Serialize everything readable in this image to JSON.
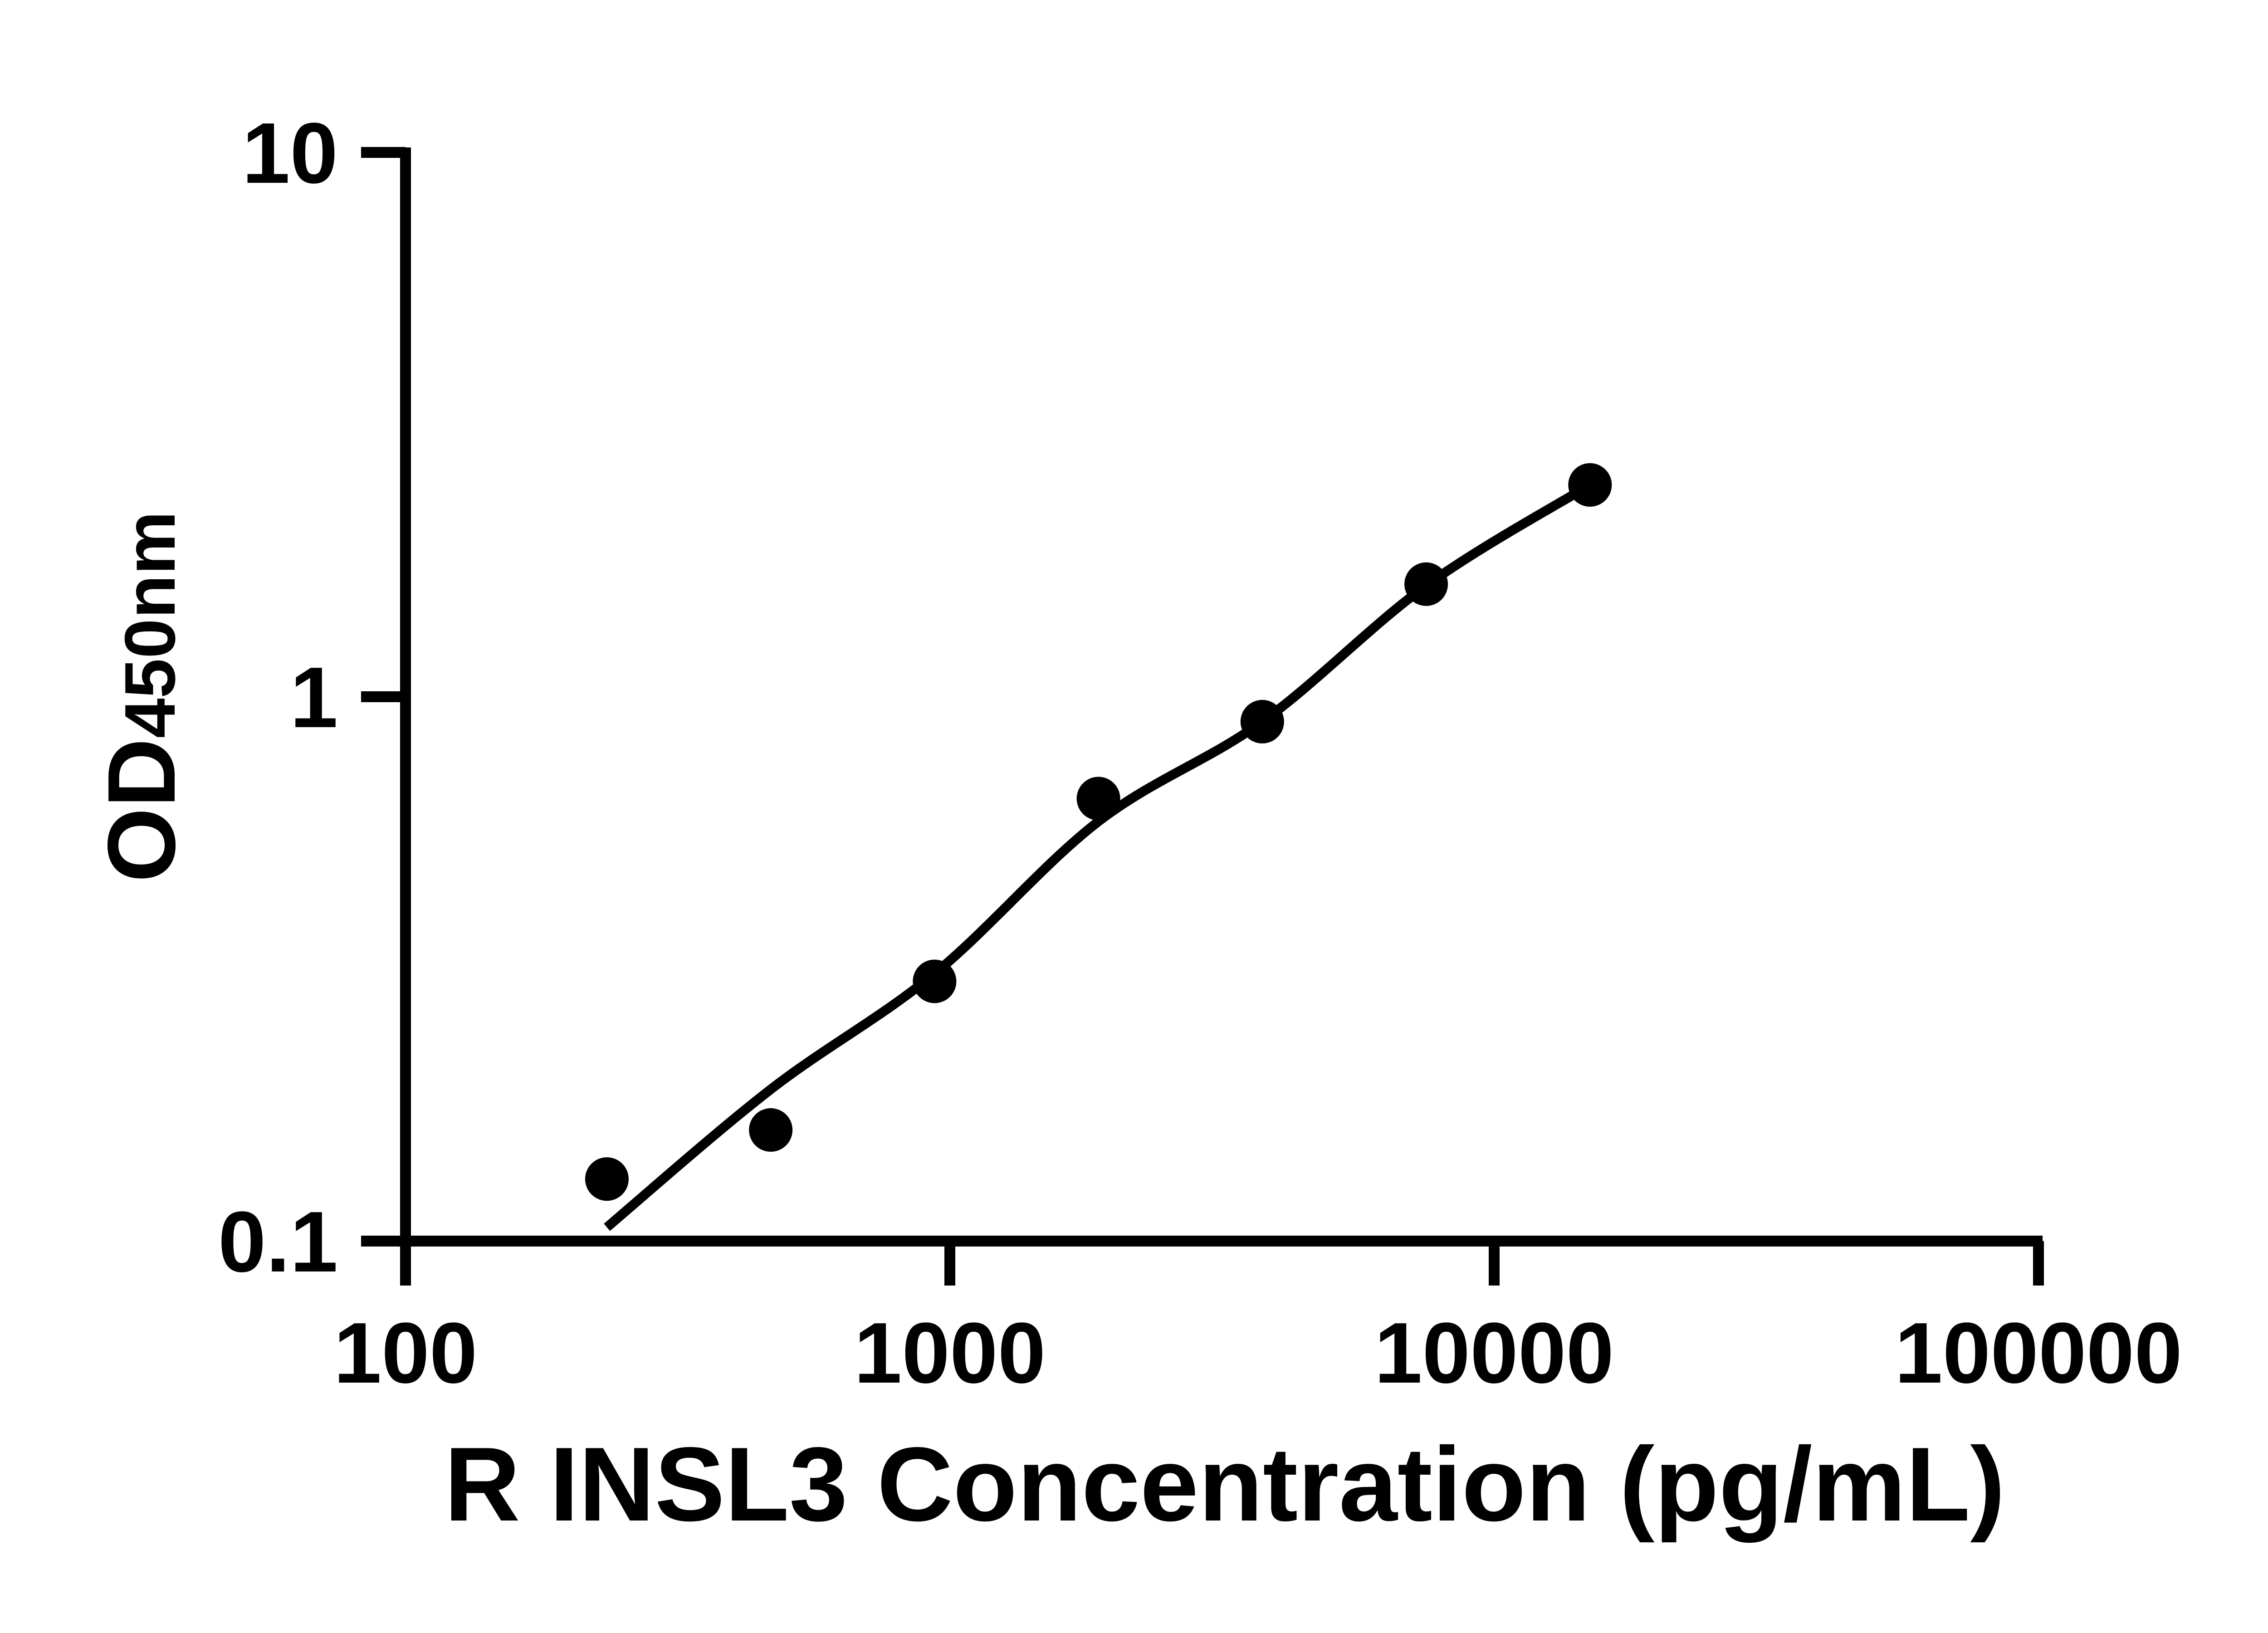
{
  "figure": {
    "background": "#ffffff",
    "ink_color": "#000000"
  },
  "chart_data": {
    "type": "scatter",
    "title": "",
    "xlabel": "R INSL3 Concentration (pg/mL)",
    "ylabel_main": "OD",
    "ylabel_sub": "450nm",
    "x_scale": "log10",
    "y_scale": "log10",
    "xlim": [
      100,
      100000
    ],
    "ylim": [
      0.1,
      10
    ],
    "grid": false,
    "legend": null,
    "x_ticks": [
      {
        "value": 100,
        "label": "100"
      },
      {
        "value": 1000,
        "label": "1000"
      },
      {
        "value": 10000,
        "label": "10000"
      },
      {
        "value": 100000,
        "label": "100000"
      }
    ],
    "y_ticks": [
      {
        "value": 0.1,
        "label": "0.1"
      },
      {
        "value": 1,
        "label": "1"
      },
      {
        "value": 10,
        "label": "10"
      }
    ],
    "series": [
      {
        "name": "standard-points",
        "kind": "scatter",
        "marker": "filled-circle",
        "color": "#000000",
        "points": [
          {
            "x": 234.4,
            "y": 0.13
          },
          {
            "x": 468.8,
            "y": 0.16
          },
          {
            "x": 937.5,
            "y": 0.3
          },
          {
            "x": 1875,
            "y": 0.65
          },
          {
            "x": 3750,
            "y": 0.9
          },
          {
            "x": 7500,
            "y": 1.61
          },
          {
            "x": 15000,
            "y": 2.45
          }
        ]
      },
      {
        "name": "fit-curve",
        "kind": "line",
        "color": "#000000",
        "points": [
          {
            "x": 234.4,
            "y": 0.106
          },
          {
            "x": 468.8,
            "y": 0.19
          },
          {
            "x": 937.5,
            "y": 0.31
          },
          {
            "x": 1875,
            "y": 0.59
          },
          {
            "x": 3750,
            "y": 0.9
          },
          {
            "x": 7500,
            "y": 1.6
          },
          {
            "x": 15000,
            "y": 2.45
          }
        ]
      }
    ]
  }
}
